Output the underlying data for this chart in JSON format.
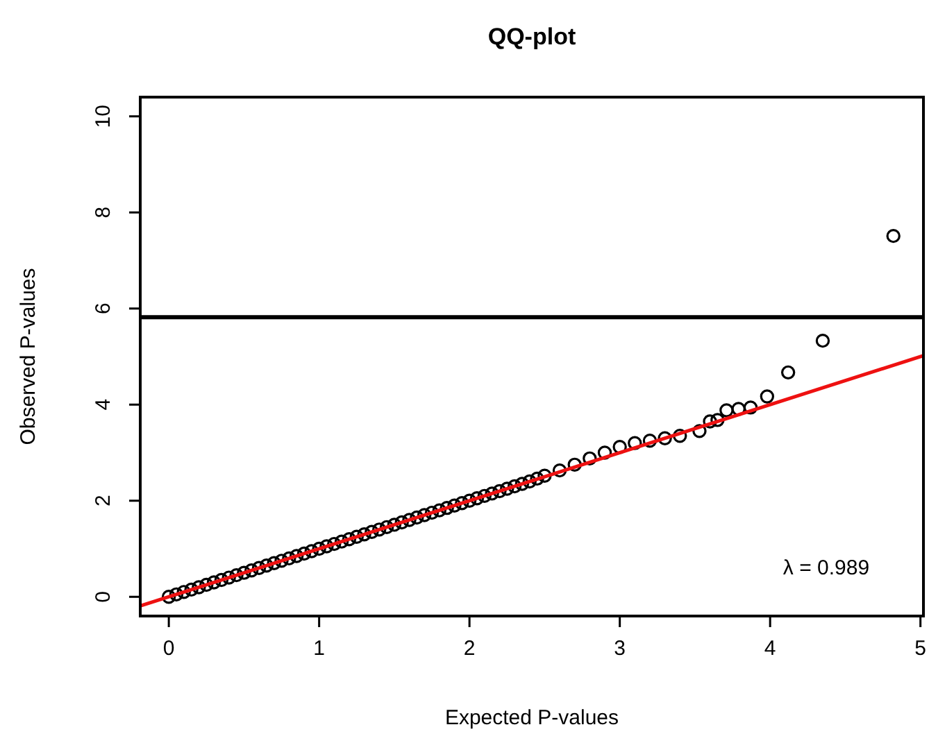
{
  "chart_data": {
    "type": "scatter",
    "title": "QQ-plot",
    "xlabel": "Expected P-values",
    "ylabel": "Observed P-values",
    "xlim": [
      -0.19,
      5.02
    ],
    "ylim": [
      -0.4,
      10.4
    ],
    "xticks": [
      0,
      1,
      2,
      3,
      4,
      5
    ],
    "yticks": [
      0,
      2,
      4,
      6,
      8,
      10
    ],
    "grid": false,
    "marker": "circle",
    "annotations": [
      "λ = 0.989"
    ],
    "ref_lines": [
      {
        "axis": "y",
        "value": 5.82,
        "color": "#000000"
      }
    ],
    "series": [
      {
        "color": "#000000",
        "x": [
          0,
          0.05,
          0.1,
          0.15,
          0.2,
          0.25,
          0.3,
          0.35,
          0.4,
          0.45,
          0.5,
          0.55,
          0.6,
          0.65,
          0.7,
          0.75,
          0.8,
          0.85,
          0.9,
          0.95,
          1,
          1.05,
          1.1,
          1.15,
          1.2,
          1.25,
          1.3,
          1.35,
          1.4,
          1.45,
          1.5,
          1.55,
          1.6,
          1.65,
          1.7,
          1.75,
          1.8,
          1.85,
          1.9,
          1.95,
          2,
          2.05,
          2.1,
          2.15,
          2.2,
          2.25,
          2.3,
          2.35,
          2.4,
          2.45,
          2.5,
          2.6,
          2.7,
          2.8,
          2.9,
          3,
          3.1,
          3.2,
          3.3,
          3.4,
          3.53,
          3.6,
          3.65,
          3.71,
          3.79,
          3.87,
          3.98,
          4.12,
          4.35,
          4.82
        ],
        "values": [
          0,
          0.05,
          0.1,
          0.15,
          0.2,
          0.25,
          0.3,
          0.35,
          0.4,
          0.45,
          0.5,
          0.55,
          0.6,
          0.65,
          0.7,
          0.75,
          0.8,
          0.85,
          0.9,
          0.95,
          1,
          1.05,
          1.1,
          1.15,
          1.2,
          1.25,
          1.3,
          1.35,
          1.4,
          1.45,
          1.5,
          1.55,
          1.6,
          1.65,
          1.7,
          1.75,
          1.8,
          1.85,
          1.9,
          1.95,
          2,
          2.05,
          2.1,
          2.15,
          2.2,
          2.25,
          2.3,
          2.35,
          2.4,
          2.46,
          2.52,
          2.63,
          2.75,
          2.88,
          3,
          3.12,
          3.2,
          3.25,
          3.3,
          3.35,
          3.45,
          3.65,
          3.68,
          3.88,
          3.91,
          3.94,
          4.17,
          4.67,
          5.33,
          7.51
        ]
      },
      {
        "type": "line",
        "color": "#ee1111",
        "marker": "none",
        "x": [
          -0.19,
          5.02
        ],
        "values": [
          -0.19,
          5.02
        ]
      }
    ]
  }
}
